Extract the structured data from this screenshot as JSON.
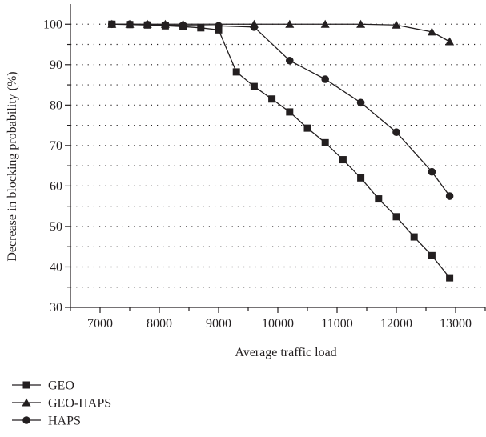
{
  "chart_data": {
    "type": "line",
    "title": "",
    "xlabel": "Average traffic load",
    "ylabel": "Decrease in blocking probability (%)",
    "xlim": [
      6500,
      13500
    ],
    "ylim": [
      30,
      105
    ],
    "xticks": [
      7000,
      8000,
      9000,
      10000,
      11000,
      12000,
      13000
    ],
    "yticks": [
      30,
      40,
      50,
      60,
      70,
      80,
      90,
      100
    ],
    "grid": "horizontal dotted",
    "legend_position": "bottom-left, below axes",
    "series": [
      {
        "name": "GEO",
        "marker": "square",
        "x": [
          7200,
          7500,
          7800,
          8100,
          8400,
          8700,
          9000,
          9300,
          9600,
          9900,
          10200,
          10500,
          10800,
          11100,
          11400,
          11700,
          12000,
          12300,
          12600,
          12900
        ],
        "y": [
          100,
          99.9,
          99.8,
          99.6,
          99.4,
          99.1,
          98.6,
          88.2,
          84.6,
          81.5,
          78.3,
          74.3,
          70.7,
          66.5,
          62.0,
          56.8,
          52.4,
          47.4,
          42.8,
          37.3
        ]
      },
      {
        "name": "GEO-HAPS",
        "marker": "triangle",
        "x": [
          7200,
          7500,
          7800,
          8100,
          8400,
          9600,
          10200,
          10800,
          11400,
          12000,
          12600,
          12900
        ],
        "y": [
          100,
          100,
          100,
          100,
          100,
          100,
          100,
          100,
          100,
          99.8,
          98.1,
          95.7
        ]
      },
      {
        "name": "HAPS",
        "marker": "circle",
        "x": [
          7200,
          7500,
          7800,
          8100,
          8400,
          9000,
          9600,
          10200,
          10800,
          11400,
          12000,
          12600,
          12900
        ],
        "y": [
          100,
          100,
          99.9,
          99.8,
          99.7,
          99.6,
          99.3,
          91.0,
          86.4,
          80.6,
          73.3,
          63.5,
          57.5
        ]
      }
    ]
  },
  "colors": {
    "line": "#231f20",
    "grid": "#231f20",
    "background": "#ffffff"
  }
}
